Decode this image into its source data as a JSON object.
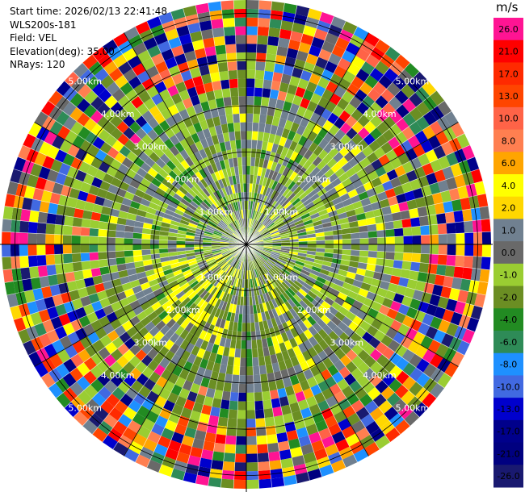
{
  "header": {
    "start_time": "Start time: 2026/02/13 22:41:48",
    "instrument": "WLS200s-181",
    "field": "Field: VEL",
    "elevation": "Elevation(deg): 35.00",
    "nrays": "NRays: 120"
  },
  "colorbar": {
    "unit": "m/s",
    "ticks": [
      "26.0",
      "21.0",
      "17.0",
      "13.0",
      "10.0",
      "8.0",
      "6.0",
      "4.0",
      "2.0",
      "1.0",
      "0.0",
      "-1.0",
      "-2.0",
      "-4.0",
      "-6.0",
      "-8.0",
      "-10.0",
      "-13.0",
      "-17.0",
      "-21.0",
      "-26.0",
      "-30.0"
    ],
    "colors": [
      "#ff1493",
      "#ff0000",
      "#ff2a00",
      "#ff4500",
      "#ff6347",
      "#ff7f50",
      "#ffa500",
      "#ffff00",
      "#ffd700",
      "#708090",
      "#696969",
      "#9acd32",
      "#6b8e23",
      "#228b22",
      "#2e8b57",
      "#1e90ff",
      "#4169e1",
      "#0000cd",
      "#00008b",
      "#000080",
      "#191970"
    ]
  },
  "chart_data": {
    "type": "heatmap",
    "description_type": "ppi_polar",
    "field": "VEL",
    "units": "m/s",
    "nrays": 120,
    "elevation_deg": 35.0,
    "range_rings": [
      "1.00km",
      "2.00km",
      "3.00km",
      "4.00km",
      "5.00km"
    ],
    "colormap_bounds": [
      -30.0,
      -26.0,
      -21.0,
      -17.0,
      -13.0,
      -10.0,
      -8.0,
      -6.0,
      -4.0,
      -2.0,
      -1.0,
      0.0,
      1.0,
      2.0,
      4.0,
      6.0,
      8.0,
      10.0,
      13.0,
      17.0,
      21.0,
      26.0
    ],
    "ring_range_km": [
      0,
      5.5
    ]
  }
}
